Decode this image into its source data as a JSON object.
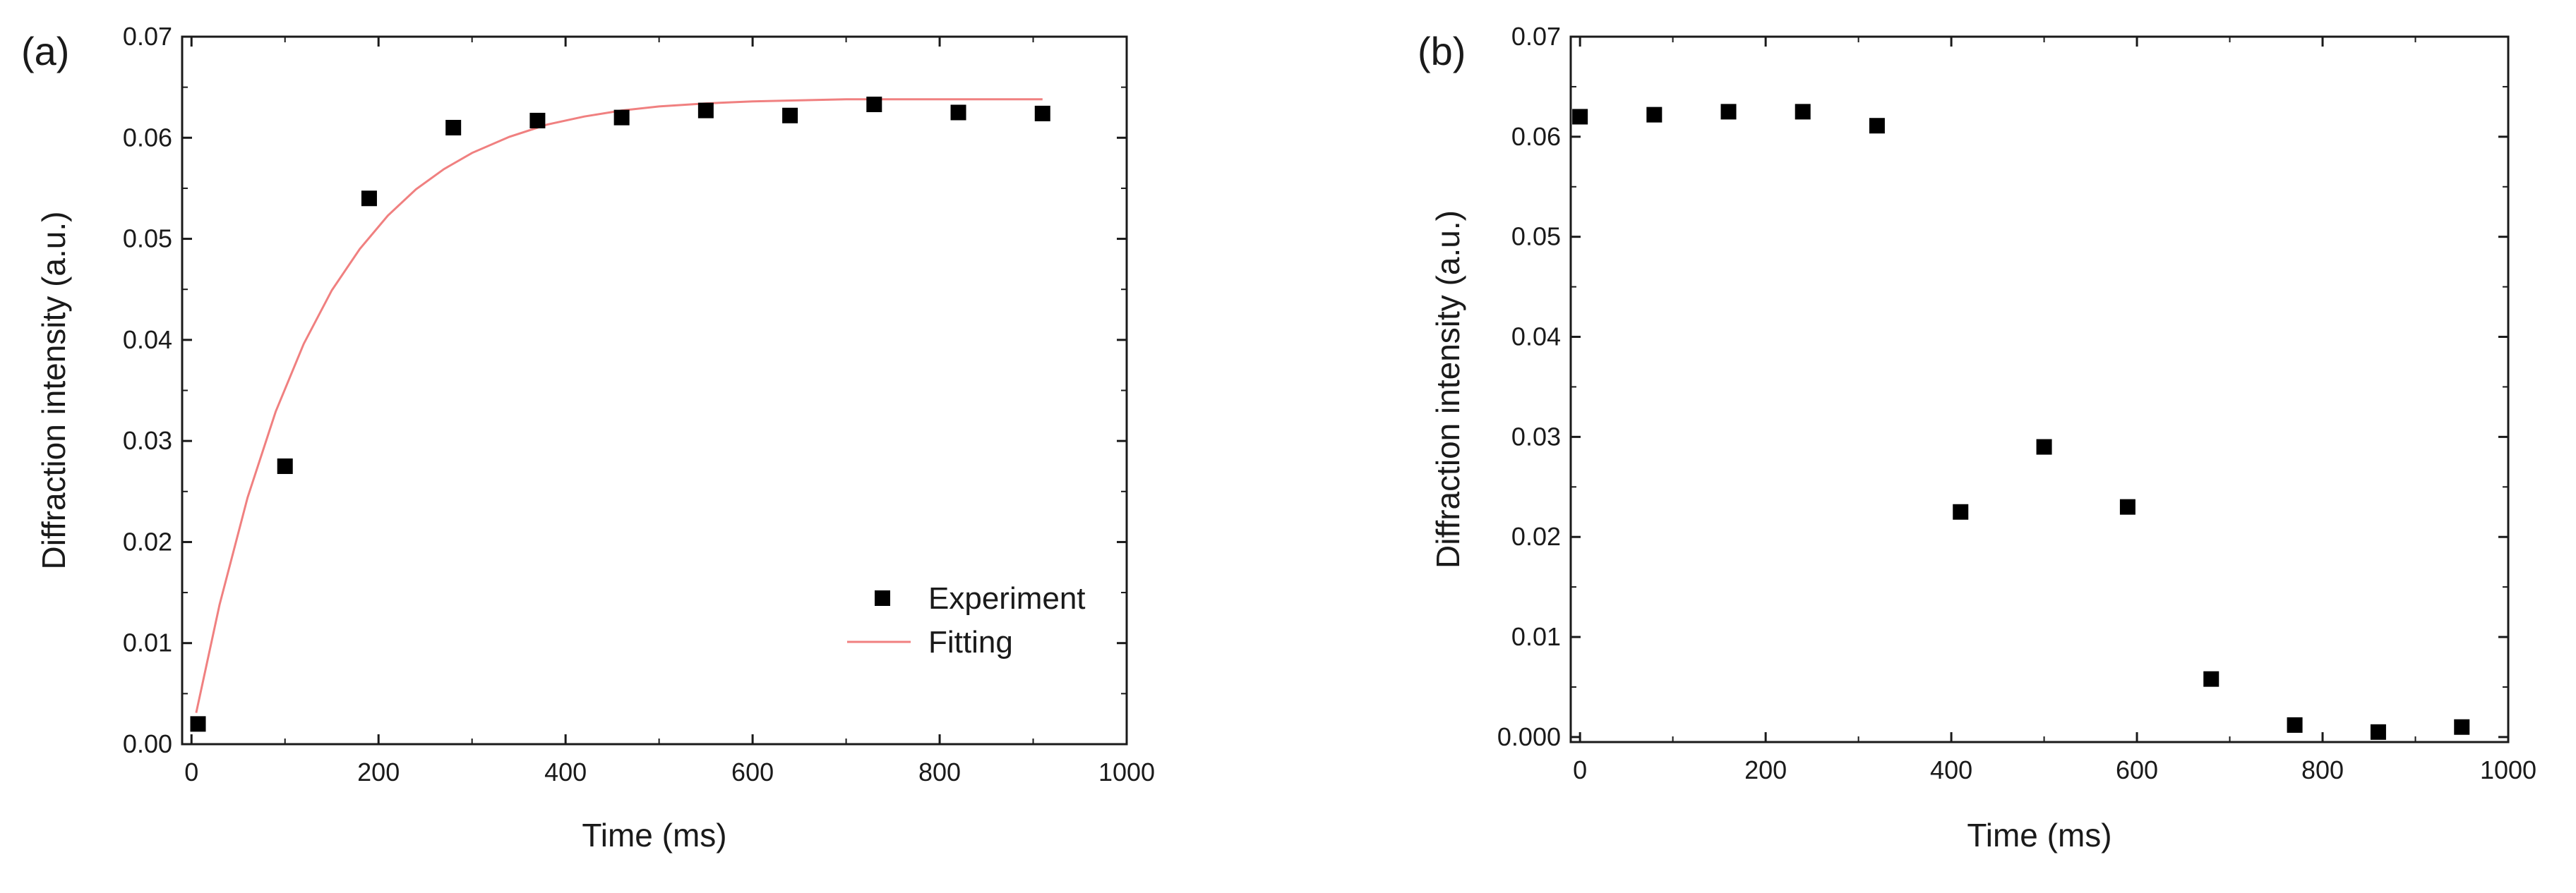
{
  "colors": {
    "marker": "#000000",
    "fit_line": "#f08080",
    "axis": "#1a1a1a"
  },
  "chart_data": [
    {
      "type": "scatter",
      "panel_label": "(a)",
      "xlabel": "Time (ms)",
      "ylabel": "Diffraction intensity (a.u.)",
      "xlim": [
        -10,
        1000
      ],
      "ylim": [
        0,
        0.07
      ],
      "xticks": [
        0,
        200,
        400,
        600,
        800,
        1000
      ],
      "xtick_labels": [
        "0",
        "200",
        "400",
        "600",
        "800",
        "1000"
      ],
      "yticks": [
        0,
        0.01,
        0.02,
        0.03,
        0.04,
        0.05,
        0.06,
        0.07
      ],
      "ytick_labels": [
        "0.00",
        "0.01",
        "0.02",
        "0.03",
        "0.04",
        "0.05",
        "0.06",
        "0.07"
      ],
      "grid": false,
      "legend_position": "bottom-right",
      "series": [
        {
          "name": "Experiment",
          "kind": "scatter",
          "x": [
            7,
            100,
            190,
            280,
            370,
            460,
            550,
            640,
            730,
            820,
            910
          ],
          "y": [
            0.002,
            0.0275,
            0.054,
            0.061,
            0.0617,
            0.062,
            0.0627,
            0.0622,
            0.0633,
            0.0625,
            0.0624
          ]
        },
        {
          "name": "Fitting",
          "kind": "line",
          "x": [
            5,
            30,
            60,
            90,
            120,
            150,
            180,
            210,
            240,
            270,
            300,
            340,
            380,
            420,
            460,
            500,
            550,
            600,
            650,
            700,
            750,
            800,
            850,
            910
          ],
          "y": [
            0.0031,
            0.0138,
            0.0244,
            0.0329,
            0.0396,
            0.0449,
            0.049,
            0.0523,
            0.0549,
            0.0569,
            0.0585,
            0.0601,
            0.0613,
            0.0621,
            0.0627,
            0.0631,
            0.0634,
            0.0636,
            0.0637,
            0.0638,
            0.0638,
            0.0638,
            0.0638,
            0.0638
          ]
        }
      ]
    },
    {
      "type": "scatter",
      "panel_label": "(b)",
      "xlabel": "Time (ms)",
      "ylabel": "Diffraction intensity (a.u.)",
      "xlim": [
        -10,
        1000
      ],
      "ylim": [
        -0.0005,
        0.07
      ],
      "xticks": [
        0,
        200,
        400,
        600,
        800,
        1000
      ],
      "xtick_labels": [
        "0",
        "200",
        "400",
        "600",
        "800",
        "1000"
      ],
      "yticks": [
        0,
        0.01,
        0.02,
        0.03,
        0.04,
        0.05,
        0.06,
        0.07
      ],
      "ytick_labels": [
        "0.000",
        "0.01",
        "0.02",
        "0.03",
        "0.04",
        "0.05",
        "0.06",
        "0.07"
      ],
      "grid": false,
      "series": [
        {
          "name": "Experiment",
          "kind": "scatter",
          "x": [
            0,
            80,
            160,
            240,
            320,
            410,
            500,
            590,
            680,
            770,
            860,
            950
          ],
          "y": [
            0.062,
            0.0622,
            0.0625,
            0.0625,
            0.0611,
            0.0225,
            0.029,
            0.023,
            0.0058,
            0.0012,
            0.0005,
            0.001
          ]
        }
      ]
    }
  ]
}
